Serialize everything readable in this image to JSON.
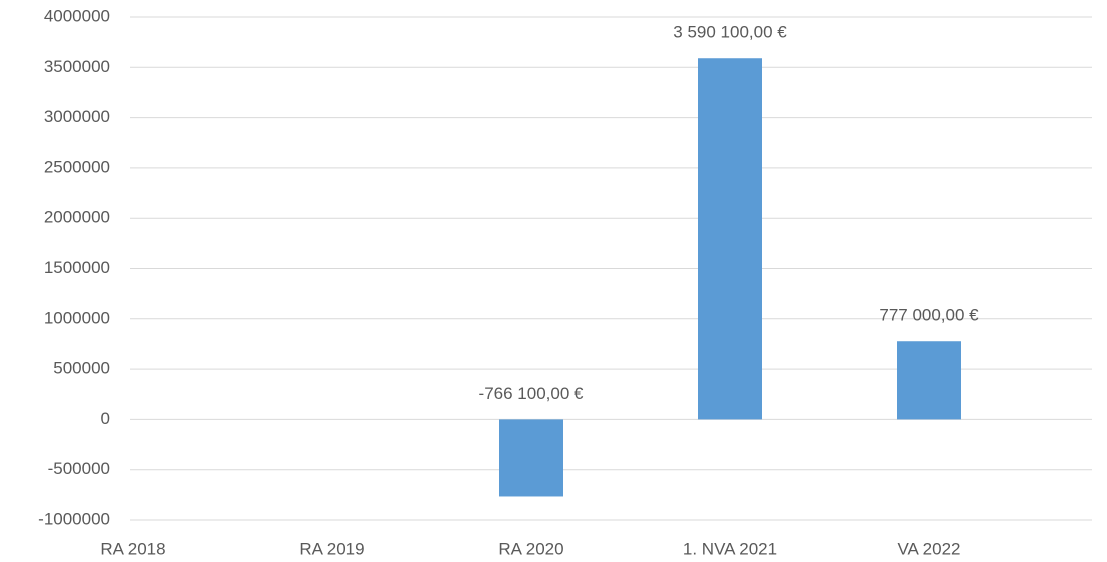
{
  "chart_data": {
    "type": "bar",
    "categories": [
      "RA 2018",
      "RA 2019",
      "RA 2020",
      "1. NVA 2021",
      "VA 2022"
    ],
    "values": [
      null,
      null,
      -766100,
      3590100,
      777000
    ],
    "value_labels": [
      null,
      null,
      "-766 100,00 €",
      "3 590 100,00 €",
      "777 000,00 €"
    ],
    "color": "#5b9bd5",
    "ylim": [
      -1000000,
      4000000
    ],
    "yticks": [
      -1000000,
      -500000,
      0,
      500000,
      1000000,
      1500000,
      2000000,
      2500000,
      3000000,
      3500000,
      4000000
    ],
    "grid": true
  }
}
